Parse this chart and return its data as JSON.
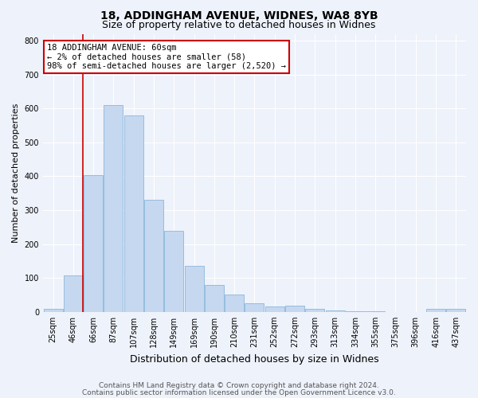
{
  "title1": "18, ADDINGHAM AVENUE, WIDNES, WA8 8YB",
  "title2": "Size of property relative to detached houses in Widnes",
  "xlabel": "Distribution of detached houses by size in Widnes",
  "ylabel": "Number of detached properties",
  "categories": [
    "25sqm",
    "46sqm",
    "66sqm",
    "87sqm",
    "107sqm",
    "128sqm",
    "149sqm",
    "169sqm",
    "190sqm",
    "210sqm",
    "231sqm",
    "252sqm",
    "272sqm",
    "293sqm",
    "313sqm",
    "334sqm",
    "355sqm",
    "375sqm",
    "396sqm",
    "416sqm",
    "437sqm"
  ],
  "values": [
    8,
    107,
    403,
    610,
    580,
    330,
    238,
    135,
    80,
    52,
    25,
    16,
    18,
    9,
    4,
    2,
    1,
    0,
    0,
    8,
    10
  ],
  "bar_color": "#c5d8f0",
  "bar_edge_color": "#7baed4",
  "vline_x_index": 2,
  "vline_color": "#cc0000",
  "annotation_text": "18 ADDINGHAM AVENUE: 60sqm\n← 2% of detached houses are smaller (58)\n98% of semi-detached houses are larger (2,520) →",
  "annotation_box_facecolor": "#ffffff",
  "annotation_box_edgecolor": "#cc0000",
  "ylim": [
    0,
    820
  ],
  "yticks": [
    0,
    100,
    200,
    300,
    400,
    500,
    600,
    700,
    800
  ],
  "footer1": "Contains HM Land Registry data © Crown copyright and database right 2024.",
  "footer2": "Contains public sector information licensed under the Open Government Licence v3.0.",
  "bg_color": "#eef2fb",
  "grid_color": "#ffffff",
  "title1_fontsize": 10,
  "title2_fontsize": 9,
  "xlabel_fontsize": 9,
  "ylabel_fontsize": 8,
  "tick_fontsize": 7,
  "footer_fontsize": 6.5,
  "ann_fontsize": 7.5
}
